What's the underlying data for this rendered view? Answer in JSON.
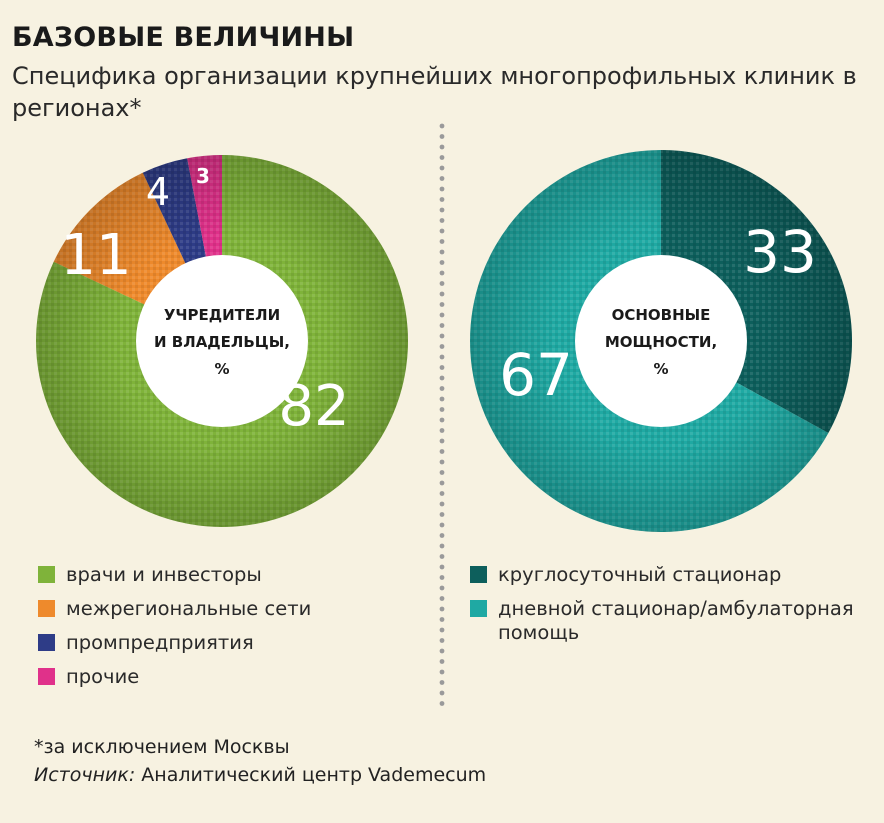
{
  "title": "БАЗОВЫЕ ВЕЛИЧИНЫ",
  "subtitle": "Специфика организации крупнейших многопрофильных клиник в регионах*",
  "footnote": "*за исключением Москвы",
  "source": {
    "label": "Источник:",
    "text": "Аналитический центр Vademecum"
  },
  "chart_data": [
    {
      "type": "pie",
      "center_label": [
        "УЧРЕДИТЕЛИ",
        "И ВЛАДЕЛЬЦЫ,",
        "%"
      ],
      "categories": [
        "врачи и инвесторы",
        "межрегиональные сети",
        "промпредприятия",
        "прочие"
      ],
      "values": [
        82,
        11,
        4,
        3
      ],
      "colors": [
        "#7fb33a",
        "#ee8a2c",
        "#2e3c87",
        "#e0318a"
      ],
      "value_labels": [
        "82",
        "11",
        "4",
        "3"
      ]
    },
    {
      "type": "pie",
      "center_label": [
        "ОСНОВНЫЕ",
        "МОЩНОСТИ,",
        "%"
      ],
      "categories": [
        "круглосуточный стационар",
        "дневной стационар/амбулаторная помощь"
      ],
      "values": [
        33,
        67
      ],
      "colors": [
        "#0d5f5c",
        "#1fa9a3"
      ],
      "value_labels": [
        "33",
        "67"
      ]
    }
  ]
}
